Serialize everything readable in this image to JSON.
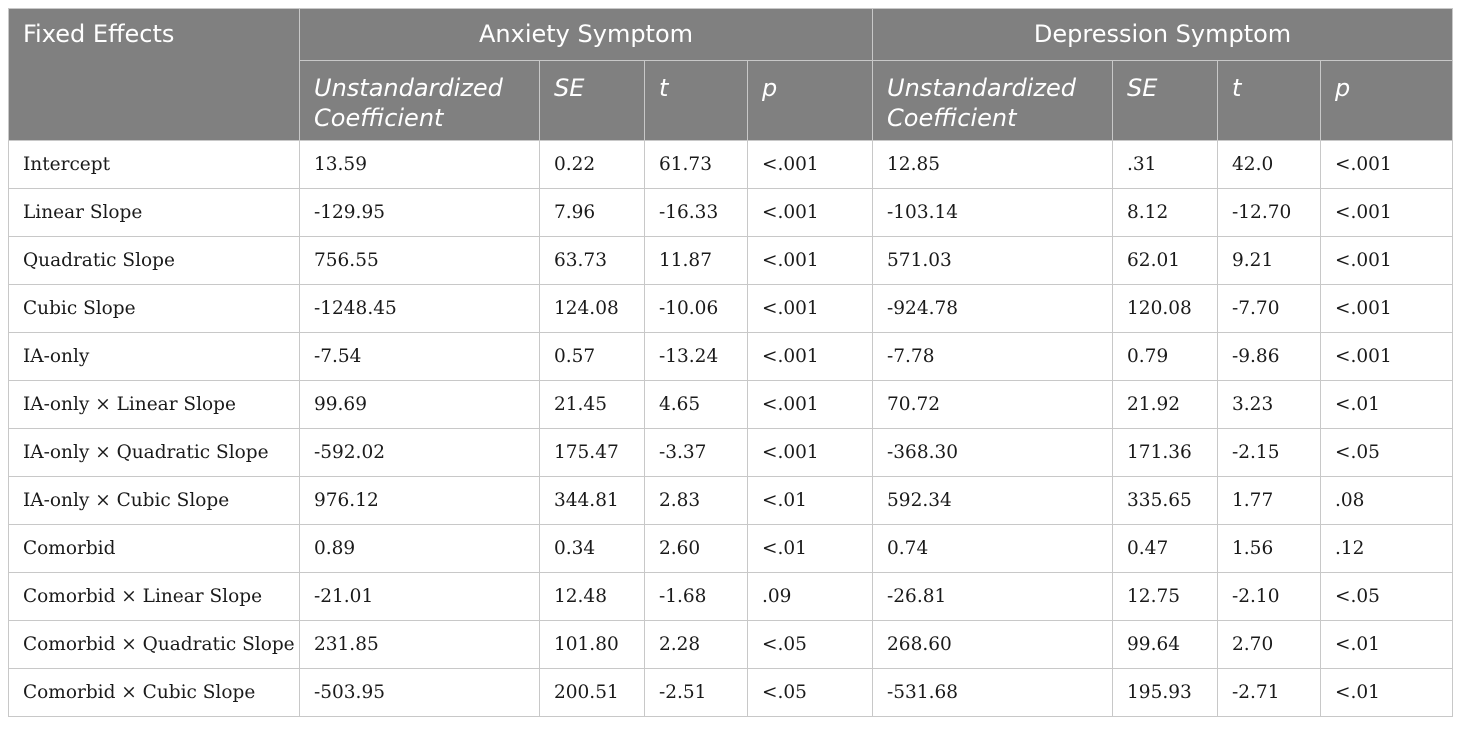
{
  "header": {
    "fixed_effects": "Fixed Effects",
    "groups": [
      "Anxiety Symptom",
      "Depression Symptom"
    ],
    "subcolumns": [
      "Unstandardized Coefficient",
      "SE",
      "t",
      "p",
      "Unstandardized Coefficient",
      "SE",
      "t",
      "p"
    ]
  },
  "rows": [
    {
      "label": "Intercept",
      "cells": [
        "13.59",
        "0.22",
        "61.73",
        "<.001",
        "12.85",
        ".31",
        "42.0",
        "<.001"
      ]
    },
    {
      "label": "Linear Slope",
      "cells": [
        "-129.95",
        "7.96",
        "-16.33",
        "<.001",
        "-103.14",
        "8.12",
        "-12.70",
        "<.001"
      ]
    },
    {
      "label": "Quadratic Slope",
      "cells": [
        "756.55",
        "63.73",
        "11.87",
        "<.001",
        "571.03",
        "62.01",
        "9.21",
        "<.001"
      ]
    },
    {
      "label": "Cubic Slope",
      "cells": [
        "-1248.45",
        "124.08",
        "-10.06",
        "<.001",
        "-924.78",
        "120.08",
        "-7.70",
        "<.001"
      ]
    },
    {
      "label": "IA-only",
      "cells": [
        "-7.54",
        "0.57",
        "-13.24",
        "<.001",
        "-7.78",
        "0.79",
        "-9.86",
        "<.001"
      ]
    },
    {
      "label": "IA-only × Linear Slope",
      "cells": [
        "99.69",
        "21.45",
        "4.65",
        "<.001",
        "70.72",
        "21.92",
        "3.23",
        "<.01"
      ]
    },
    {
      "label": "IA-only × Quadratic Slope",
      "cells": [
        "-592.02",
        "175.47",
        "-3.37",
        "<.001",
        "-368.30",
        "171.36",
        "-2.15",
        "<.05"
      ]
    },
    {
      "label": "IA-only × Cubic Slope",
      "cells": [
        "976.12",
        "344.81",
        "2.83",
        "<.01",
        "592.34",
        "335.65",
        "1.77",
        ".08"
      ]
    },
    {
      "label": "Comorbid",
      "cells": [
        "0.89",
        "0.34",
        "2.60",
        "<.01",
        "0.74",
        "0.47",
        "1.56",
        ".12"
      ]
    },
    {
      "label": "Comorbid × Linear Slope",
      "cells": [
        "-21.01",
        "12.48",
        "-1.68",
        ".09",
        "-26.81",
        "12.75",
        "-2.10",
        "<.05"
      ]
    },
    {
      "label": "Comorbid × Quadratic Slope",
      "cells": [
        "231.85",
        "101.80",
        "2.28",
        "<.05",
        "268.60",
        "99.64",
        "2.70",
        "<.01"
      ]
    },
    {
      "label": "Comorbid × Cubic Slope",
      "cells": [
        "-503.95",
        "200.51",
        "-2.51",
        "<.05",
        "-531.68",
        "195.93",
        "-2.71",
        "<.01"
      ]
    }
  ]
}
